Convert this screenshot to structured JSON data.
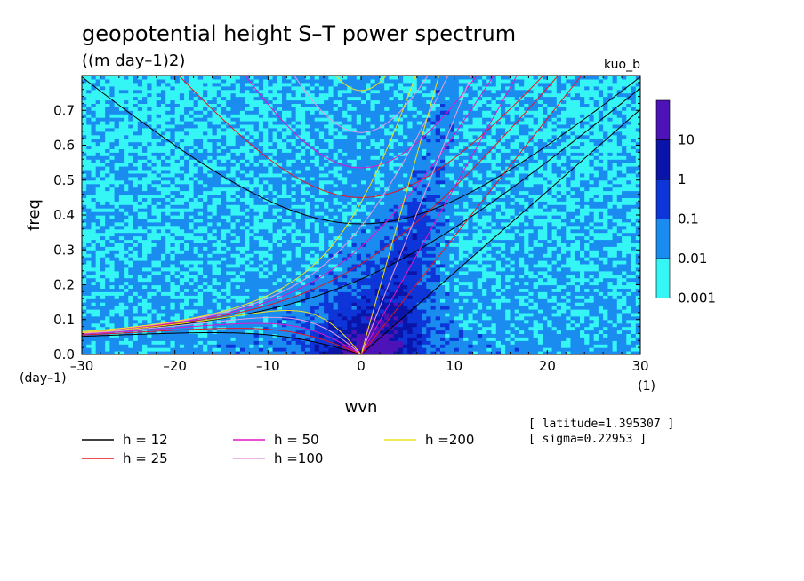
{
  "chart_data": {
    "type": "heatmap",
    "title": "geopotential height S–T power spectrum",
    "units": "((m day–1)2)",
    "model": "kuo_b",
    "xlabel": "wvn",
    "ylabel": "freq",
    "x_unit": "(1)",
    "y_unit": "(day–1)",
    "xlim": [
      -30,
      30
    ],
    "ylim": [
      0,
      0.8
    ],
    "x_ticks": [
      "–30",
      "–20",
      "–10",
      "0",
      "10",
      "20",
      "30"
    ],
    "y_ticks": [
      "0.0",
      "0.1",
      "0.2",
      "0.3",
      "0.4",
      "0.5",
      "0.6",
      "0.7"
    ],
    "colorbar": {
      "levels": [
        "0.001",
        "0.01",
        "0.1",
        "1",
        "10"
      ],
      "colors": [
        "#35f5f5",
        "#1a8cf0",
        "#0d35d8",
        "#0a14a8",
        "#4d12b8"
      ]
    },
    "dispersion_curves": {
      "series": [
        {
          "name": "h = 12",
          "equivalent_depth": 12,
          "color": "#000000"
        },
        {
          "name": "h = 25",
          "equivalent_depth": 25,
          "color": "#e8141e"
        },
        {
          "name": "h = 50",
          "equivalent_depth": 50,
          "color": "#e414c8"
        },
        {
          "name": "h =100",
          "equivalent_depth": 100,
          "color": "#e89ee0"
        },
        {
          "name": "h =200",
          "equivalent_depth": 200,
          "color": "#f0e21e"
        }
      ],
      "latitude_label": "[ latitude=1.395307 ]",
      "sigma_label": "[ sigma=0.22953 ]"
    }
  }
}
